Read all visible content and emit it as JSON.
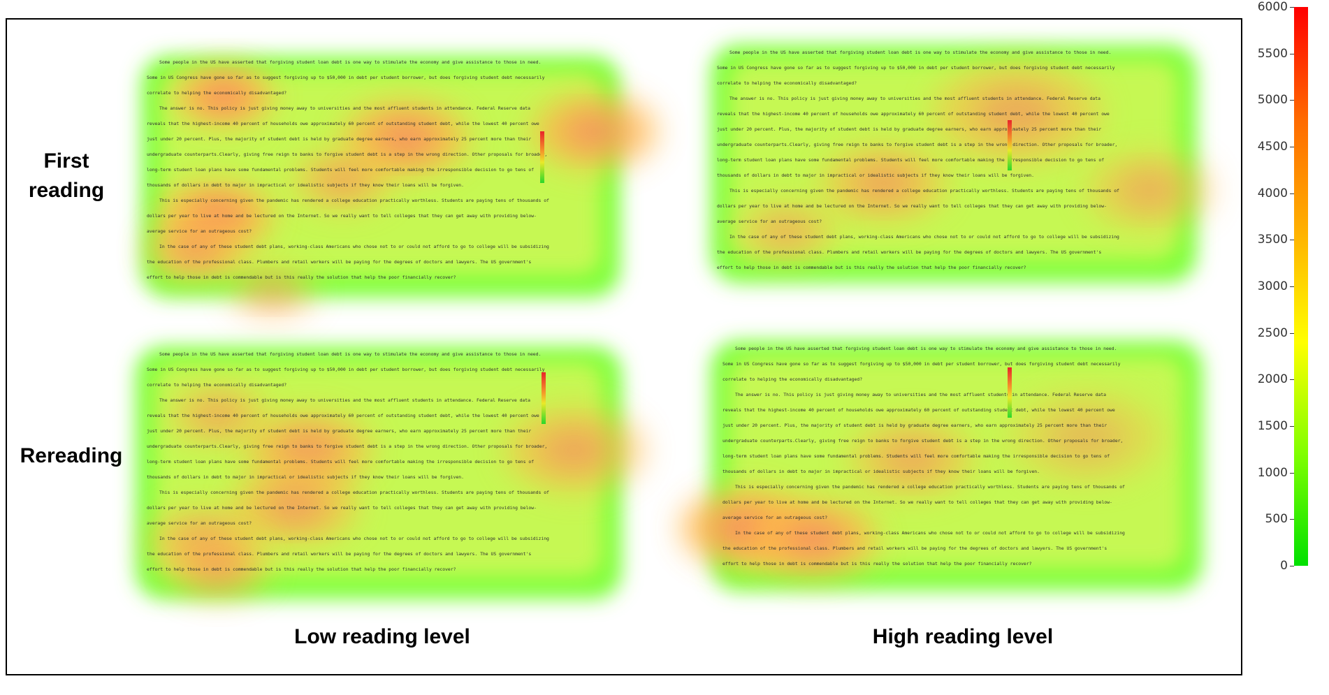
{
  "chart_data": {
    "type": "heatmap",
    "rows": [
      "First reading",
      "Rereading"
    ],
    "columns": [
      "Low reading level",
      "High reading level"
    ],
    "colorbar": {
      "min": 0,
      "max": 6000,
      "ticks": [
        0,
        500,
        1000,
        1500,
        2000,
        2500,
        3000,
        3500,
        4000,
        4500,
        5000,
        5500,
        6000
      ],
      "colors": [
        "#00e000",
        "#80ff00",
        "#ffff00",
        "#ffb000",
        "#ff6a00",
        "#ff0000"
      ]
    },
    "stimulus_paragraphs": [
      [
        "Some people in the US have asserted that forgiving student loan debt is one way to stimulate the economy and give assistance to those in need.",
        "Some in US Congress have gone so far as to suggest forgiving up to $50,000 in debt per student borrower, but does forgiving student debt necessarily",
        "correlate to helping the economically disadvantaged?"
      ],
      [
        "The answer is no. This policy is just giving money away to universities and the most affluent students in attendance. Federal Reserve data",
        "reveals that the highest-income 40 percent of households owe approximately 60 percent of outstanding student debt, while the lowest 40 percent owe",
        "just under 20 percent. Plus, the majority of student debt is held by graduate degree earners, who earn approximately 25 percent more than their",
        "undergraduate counterparts.Clearly, giving free reign to banks to forgive student debt is a step in the wrong direction. Other proposals for broader,",
        "long-term student loan plans have some fundamental problems. Students will feel more comfortable making the irresponsible decision to go tens of",
        "thousands of dollars in debt to major in impractical or idealistic subjects if they know their loans will be forgiven."
      ],
      [
        "This is especially concerning given the pandemic has rendered a college education practically worthless. Students are paying tens of thousands of",
        "dollars per year to live at home and be lectured on the Internet. So we really want to tell colleges that they can get away with providing below-",
        "average service for an outrageous cost?"
      ],
      [
        "In the case of any of these student debt plans, working-class Americans who chose not to or could not afford to go to college will be subsidizing",
        "the education of the professional class. Plumbers and retail workers will be paying for the degrees of doctors and lawyers. The US government's",
        "effort to help those in debt is commendable but is this really the solution that help the poor financially recover?"
      ]
    ],
    "panels": [
      {
        "row": "First reading",
        "column": "Low reading level"
      },
      {
        "row": "First reading",
        "column": "High reading level"
      },
      {
        "row": "Rereading",
        "column": "Low reading level"
      },
      {
        "row": "Rereading",
        "column": "High reading level"
      }
    ]
  }
}
